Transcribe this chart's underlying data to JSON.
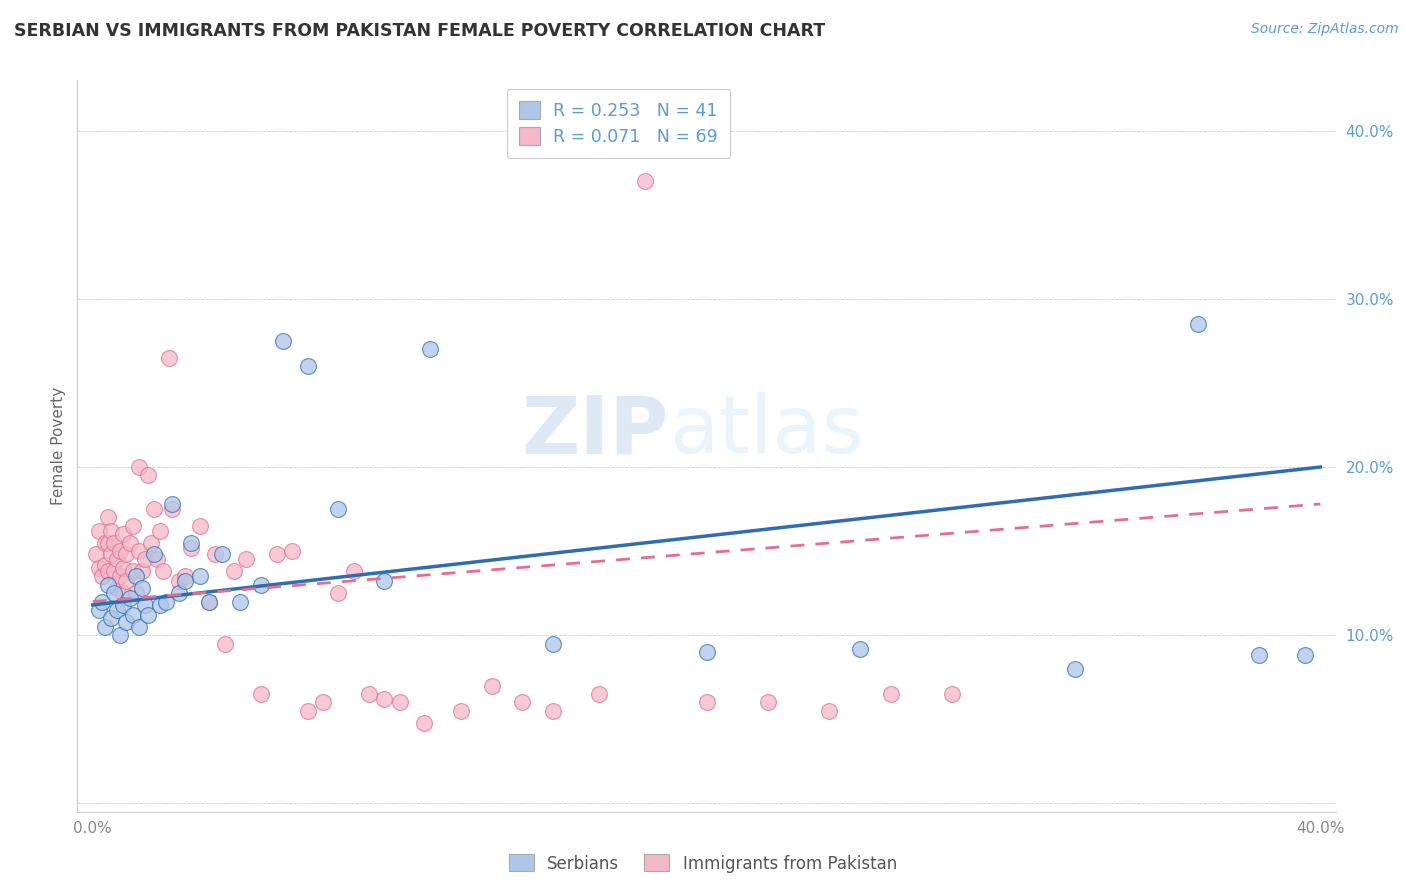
{
  "title": "SERBIAN VS IMMIGRANTS FROM PAKISTAN FEMALE POVERTY CORRELATION CHART",
  "source": "Source: ZipAtlas.com",
  "ylabel": "Female Poverty",
  "yticks": [
    0.0,
    0.1,
    0.2,
    0.3,
    0.4
  ],
  "ytick_labels": [
    "",
    "10.0%",
    "20.0%",
    "30.0%",
    "40.0%"
  ],
  "xticks": [
    0.0,
    0.1,
    0.2,
    0.3,
    0.4
  ],
  "xtick_labels": [
    "0.0%",
    "",
    "",
    "",
    "40.0%"
  ],
  "xlim": [
    -0.005,
    0.405
  ],
  "ylim": [
    -0.005,
    0.43
  ],
  "watermark_zip": "ZIP",
  "watermark_atlas": "atlas",
  "legend_r1": "R = 0.253",
  "legend_n1": "N = 41",
  "legend_r2": "R = 0.071",
  "legend_n2": "N = 69",
  "legend_label1": "Serbians",
  "legend_label2": "Immigrants from Pakistan",
  "color_serbian": "#aec6e8",
  "color_pakistan": "#f4b8c8",
  "color_line_serbian": "#2e6db4",
  "color_line_pakistan": "#e07090",
  "serbian_x": [
    0.002,
    0.003,
    0.004,
    0.005,
    0.006,
    0.007,
    0.008,
    0.009,
    0.01,
    0.011,
    0.012,
    0.013,
    0.014,
    0.015,
    0.016,
    0.017,
    0.018,
    0.02,
    0.022,
    0.024,
    0.026,
    0.028,
    0.03,
    0.032,
    0.035,
    0.038,
    0.042,
    0.048,
    0.055,
    0.062,
    0.07,
    0.08,
    0.095,
    0.11,
    0.15,
    0.2,
    0.25,
    0.32,
    0.36,
    0.38,
    0.395
  ],
  "serbian_y": [
    0.115,
    0.12,
    0.105,
    0.13,
    0.11,
    0.125,
    0.115,
    0.1,
    0.118,
    0.108,
    0.122,
    0.112,
    0.135,
    0.105,
    0.128,
    0.118,
    0.112,
    0.148,
    0.118,
    0.12,
    0.178,
    0.125,
    0.132,
    0.155,
    0.135,
    0.12,
    0.148,
    0.12,
    0.13,
    0.275,
    0.26,
    0.175,
    0.132,
    0.27,
    0.095,
    0.09,
    0.092,
    0.08,
    0.285,
    0.088,
    0.088
  ],
  "pakistan_x": [
    0.001,
    0.002,
    0.002,
    0.003,
    0.004,
    0.004,
    0.005,
    0.005,
    0.005,
    0.006,
    0.006,
    0.007,
    0.007,
    0.008,
    0.008,
    0.009,
    0.009,
    0.01,
    0.01,
    0.01,
    0.011,
    0.011,
    0.012,
    0.013,
    0.013,
    0.014,
    0.015,
    0.015,
    0.016,
    0.017,
    0.018,
    0.019,
    0.02,
    0.021,
    0.022,
    0.023,
    0.025,
    0.026,
    0.028,
    0.03,
    0.032,
    0.035,
    0.038,
    0.04,
    0.043,
    0.046,
    0.05,
    0.055,
    0.06,
    0.065,
    0.07,
    0.075,
    0.08,
    0.085,
    0.09,
    0.095,
    0.1,
    0.108,
    0.12,
    0.13,
    0.14,
    0.15,
    0.165,
    0.18,
    0.2,
    0.22,
    0.24,
    0.26,
    0.28
  ],
  "pakistan_y": [
    0.148,
    0.14,
    0.162,
    0.135,
    0.155,
    0.142,
    0.138,
    0.155,
    0.17,
    0.148,
    0.162,
    0.138,
    0.155,
    0.128,
    0.145,
    0.135,
    0.15,
    0.125,
    0.14,
    0.16,
    0.132,
    0.148,
    0.155,
    0.138,
    0.165,
    0.125,
    0.15,
    0.2,
    0.138,
    0.145,
    0.195,
    0.155,
    0.175,
    0.145,
    0.162,
    0.138,
    0.265,
    0.175,
    0.132,
    0.135,
    0.152,
    0.165,
    0.12,
    0.148,
    0.095,
    0.138,
    0.145,
    0.065,
    0.148,
    0.15,
    0.055,
    0.06,
    0.125,
    0.138,
    0.065,
    0.062,
    0.06,
    0.048,
    0.055,
    0.07,
    0.06,
    0.055,
    0.065,
    0.37,
    0.06,
    0.06,
    0.055,
    0.065,
    0.065
  ],
  "line_serbian_x0": 0.0,
  "line_serbian_y0": 0.118,
  "line_serbian_x1": 0.4,
  "line_serbian_y1": 0.2,
  "line_pakistan_x0": 0.0,
  "line_pakistan_y0": 0.12,
  "line_pakistan_x1": 0.4,
  "line_pakistan_y1": 0.178
}
